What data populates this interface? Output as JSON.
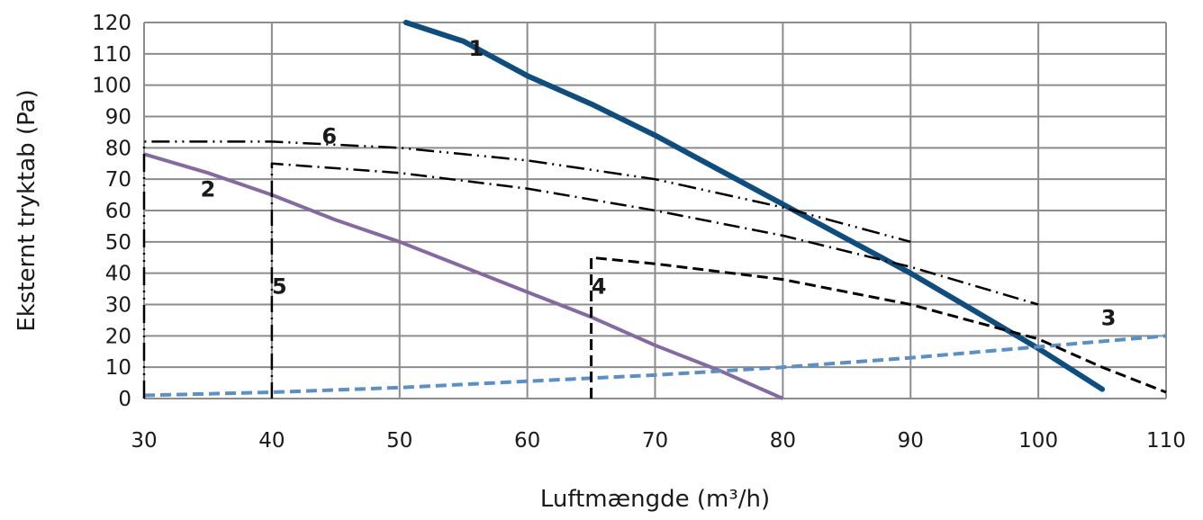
{
  "chart_data": {
    "type": "line",
    "xlabel": "Luftmængde (m³/h)",
    "ylabel": "Eksternt tryktab (Pa)",
    "xlim": [
      30,
      110
    ],
    "ylim": [
      0,
      120
    ],
    "x_ticks": [
      30,
      40,
      50,
      60,
      70,
      80,
      90,
      100,
      110
    ],
    "y_ticks": [
      0,
      10,
      20,
      30,
      40,
      50,
      60,
      70,
      80,
      90,
      100,
      110,
      120
    ],
    "grid": true,
    "legend": "none",
    "series": [
      {
        "name": "1",
        "color": "#0d4d80",
        "style": "solid-thick",
        "points": [
          [
            50.5,
            120
          ],
          [
            55,
            114
          ],
          [
            60,
            103
          ],
          [
            65,
            94
          ],
          [
            70,
            84
          ],
          [
            75,
            73
          ],
          [
            80,
            62
          ],
          [
            85,
            51
          ],
          [
            90,
            40
          ],
          [
            95,
            28
          ],
          [
            100,
            16
          ],
          [
            105,
            3
          ]
        ]
      },
      {
        "name": "2",
        "color": "#8569a3",
        "style": "solid",
        "points": [
          [
            30,
            78
          ],
          [
            35,
            72
          ],
          [
            40,
            65
          ],
          [
            45,
            57
          ],
          [
            50,
            50
          ],
          [
            55,
            42
          ],
          [
            60,
            34
          ],
          [
            65,
            26
          ],
          [
            70,
            17
          ],
          [
            75,
            9
          ],
          [
            80,
            0
          ]
        ]
      },
      {
        "name": "3",
        "color": "#5b8fc7",
        "style": "dashed",
        "points": [
          [
            30,
            1
          ],
          [
            40,
            2
          ],
          [
            50,
            3.5
          ],
          [
            60,
            5.5
          ],
          [
            70,
            7.5
          ],
          [
            80,
            10
          ],
          [
            90,
            13
          ],
          [
            100,
            16.5
          ],
          [
            110,
            20
          ]
        ]
      },
      {
        "name": "4",
        "color": "#000000",
        "style": "dashed",
        "points": [
          [
            65,
            0
          ],
          [
            65,
            45
          ],
          [
            70,
            43
          ],
          [
            80,
            38
          ],
          [
            90,
            30
          ],
          [
            100,
            19
          ],
          [
            105,
            10
          ],
          [
            110,
            2
          ]
        ]
      },
      {
        "name": "5",
        "color": "#000000",
        "style": "dash-dot",
        "points": [
          [
            40,
            0
          ],
          [
            40,
            75
          ],
          [
            50,
            72
          ],
          [
            60,
            67
          ],
          [
            70,
            60
          ],
          [
            80,
            52
          ],
          [
            90,
            42
          ],
          [
            100,
            30
          ]
        ]
      },
      {
        "name": "6",
        "color": "#000000",
        "style": "dash-dot-dot",
        "points": [
          [
            30,
            0
          ],
          [
            30,
            82
          ],
          [
            40,
            82
          ],
          [
            50,
            80
          ],
          [
            60,
            76
          ],
          [
            70,
            70
          ],
          [
            80,
            61
          ],
          [
            90,
            50
          ]
        ]
      }
    ],
    "series_label_positions": [
      {
        "name": "1",
        "x": 56,
        "y": 112
      },
      {
        "name": "2",
        "x": 35,
        "y": 67
      },
      {
        "name": "3",
        "x": 105.5,
        "y": 26
      },
      {
        "name": "4",
        "x": 65.6,
        "y": 36
      },
      {
        "name": "5",
        "x": 40.6,
        "y": 36
      },
      {
        "name": "6",
        "x": 44.5,
        "y": 84
      }
    ]
  }
}
